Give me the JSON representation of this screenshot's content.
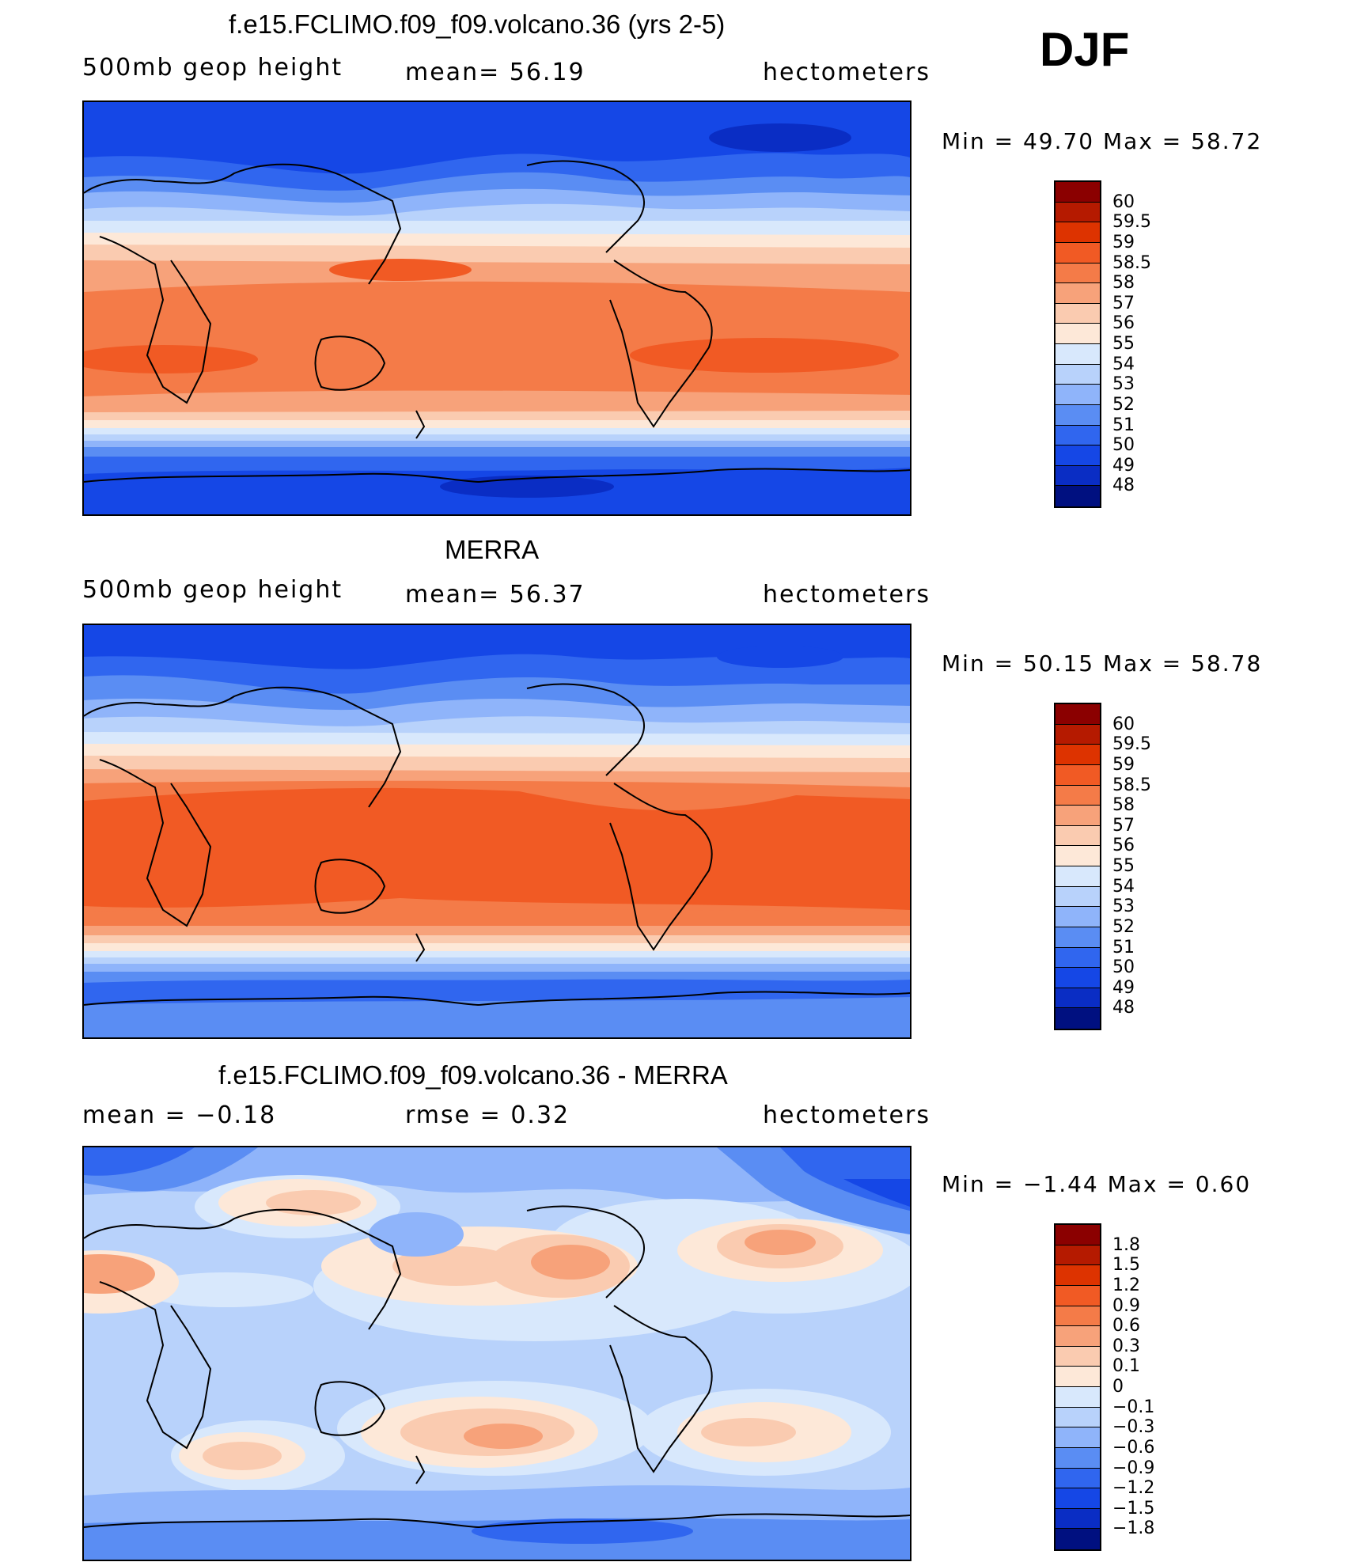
{
  "season": "DJF",
  "panels": [
    {
      "title": "f.e15.FCLIMO.f09_f09.volcano.36 (yrs 2-5)",
      "left_label": "500mb geop height",
      "center_label": "mean=   56.19",
      "right_label": "hectometers",
      "minmax": "Min =   49.70  Max =   58.72",
      "colorbar": {
        "labels": [
          "60",
          "59.5",
          "59",
          "58.5",
          "58",
          "57",
          "56",
          "55",
          "54",
          "53",
          "52",
          "51",
          "50",
          "49",
          "48"
        ],
        "colors": [
          "#8b0000",
          "#b51a00",
          "#dd3300",
          "#f15a24",
          "#f47b48",
          "#f7a27a",
          "#facbb0",
          "#fde8d8",
          "#d8e8fc",
          "#b8d2fb",
          "#8fb4fa",
          "#5a8df3",
          "#3066ef",
          "#1547e6",
          "#0a2dc4",
          "#001080"
        ]
      },
      "chart_data": {
        "type": "heatmap",
        "title": "f.e15.FCLIMO.f09_f09.volcano.36 (yrs 2-5)",
        "variable": "500mb geop height",
        "units": "hectometers",
        "mean": 56.19,
        "min": 49.7,
        "max": 58.72,
        "levels": [
          48,
          49,
          50,
          51,
          52,
          53,
          54,
          55,
          56,
          57,
          58,
          58.5,
          59,
          59.5,
          60
        ]
      }
    },
    {
      "title": "MERRA",
      "left_label": "500mb geop height",
      "center_label": "mean=   56.37",
      "right_label": "hectometers",
      "minmax": "Min =   50.15  Max =   58.78",
      "colorbar": {
        "labels": [
          "60",
          "59.5",
          "59",
          "58.5",
          "58",
          "57",
          "56",
          "55",
          "54",
          "53",
          "52",
          "51",
          "50",
          "49",
          "48"
        ],
        "colors": [
          "#8b0000",
          "#b51a00",
          "#dd3300",
          "#f15a24",
          "#f47b48",
          "#f7a27a",
          "#facbb0",
          "#fde8d8",
          "#d8e8fc",
          "#b8d2fb",
          "#8fb4fa",
          "#5a8df3",
          "#3066ef",
          "#1547e6",
          "#0a2dc4",
          "#001080"
        ]
      },
      "chart_data": {
        "type": "heatmap",
        "title": "MERRA",
        "variable": "500mb geop height",
        "units": "hectometers",
        "mean": 56.37,
        "min": 50.15,
        "max": 58.78,
        "levels": [
          48,
          49,
          50,
          51,
          52,
          53,
          54,
          55,
          56,
          57,
          58,
          58.5,
          59,
          59.5,
          60
        ]
      }
    },
    {
      "title": "f.e15.FCLIMO.f09_f09.volcano.36 - MERRA",
      "left_label": "mean =   −0.18",
      "center_label": "rmse =    0.32",
      "right_label": "hectometers",
      "minmax": "Min =   −1.44  Max =     0.60",
      "colorbar": {
        "labels": [
          "1.8",
          "1.5",
          "1.2",
          "0.9",
          "0.6",
          "0.3",
          "0.1",
          "0",
          "−0.1",
          "−0.3",
          "−0.6",
          "−0.9",
          "−1.2",
          "−1.5",
          "−1.8"
        ],
        "colors": [
          "#8b0000",
          "#b51a00",
          "#dd3300",
          "#f15a24",
          "#f47b48",
          "#f7a27a",
          "#facbb0",
          "#fde8d8",
          "#d8e8fc",
          "#b8d2fb",
          "#8fb4fa",
          "#5a8df3",
          "#3066ef",
          "#1547e6",
          "#0a2dc4",
          "#001080"
        ]
      },
      "chart_data": {
        "type": "heatmap",
        "title": "f.e15.FCLIMO.f09_f09.volcano.36 - MERRA",
        "units": "hectometers",
        "mean": -0.18,
        "rmse": 0.32,
        "min": -1.44,
        "max": 0.6,
        "levels": [
          -1.8,
          -1.5,
          -1.2,
          -0.9,
          -0.6,
          -0.3,
          -0.1,
          0,
          0.1,
          0.3,
          0.6,
          0.9,
          1.2,
          1.5,
          1.8
        ]
      }
    }
  ]
}
